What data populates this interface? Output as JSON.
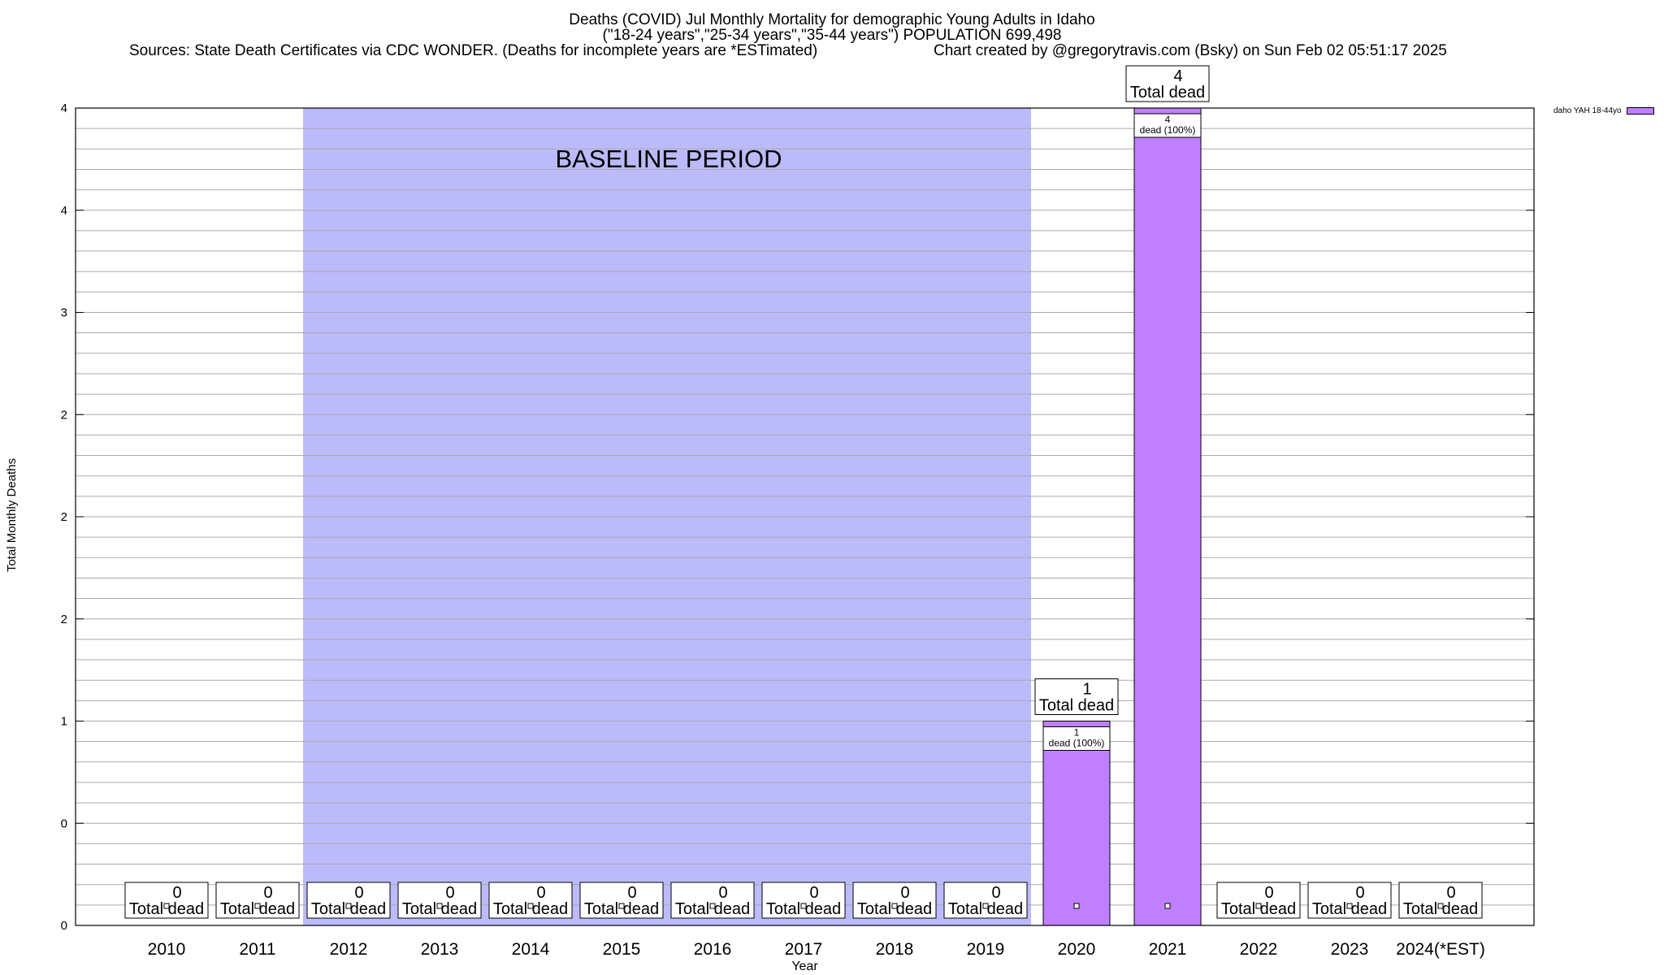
{
  "chart_data": {
    "type": "bar",
    "title_lines": [
      "Deaths (COVID) Jul Monthly Mortality for demographic Young Adults in Idaho",
      "(\"18-24 years\",\"25-34 years\",\"35-44 years\") POPULATION 699,498"
    ],
    "sources": "Sources: State Death Certificates via CDC WONDER. (Deaths for incomplete years are *ESTimated)",
    "credit": "Chart created by @gregorytravis.com (Bsky) on Sun Feb 02 05:51:17 2025",
    "xlabel": "Year",
    "ylabel": "Total Monthly Deaths",
    "categories": [
      "2010",
      "2011",
      "2012",
      "2013",
      "2014",
      "2015",
      "2016",
      "2017",
      "2018",
      "2019",
      "2020",
      "2021",
      "2022",
      "2023",
      "2024(*EST)"
    ],
    "series": [
      {
        "name": "daho YAH 18-44yo",
        "values": [
          0,
          0,
          0,
          0,
          0,
          0,
          0,
          0,
          0,
          0,
          1,
          4,
          0,
          0,
          0
        ],
        "color": "#bf80ff"
      }
    ],
    "total_labels": [
      "0",
      "0",
      "0",
      "0",
      "0",
      "0",
      "0",
      "0",
      "0",
      "0",
      "1",
      "4",
      "0",
      "0",
      "0"
    ],
    "total_suffix": "Total dead",
    "inner_labels": [
      null,
      null,
      null,
      null,
      null,
      null,
      null,
      null,
      null,
      null,
      [
        "1",
        "dead (100%)"
      ],
      [
        "4",
        "dead (100%)"
      ],
      null,
      null,
      null
    ],
    "y_tick_labels": [
      "0",
      "0",
      "1",
      "2",
      "2",
      "2",
      "3",
      "4",
      "4"
    ],
    "ylim": [
      0,
      4
    ],
    "baseline": {
      "label": "BASELINE PERIOD",
      "from": "2012",
      "to": "2019",
      "color": "#bbbbfb"
    },
    "grid": true,
    "legend_position": "top-right, outside plot"
  }
}
